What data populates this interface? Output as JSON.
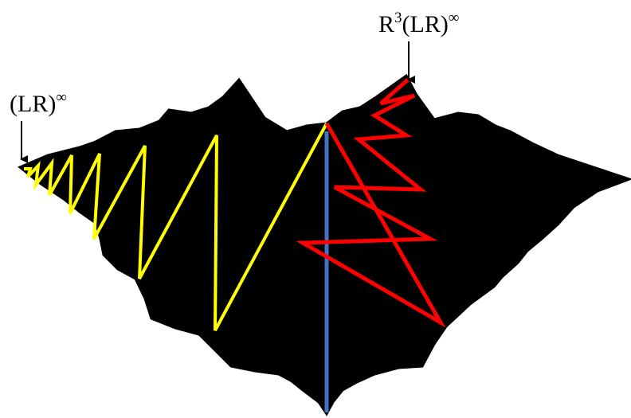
{
  "labels": [
    {
      "text": "(LR)",
      "sup": "∞"
    },
    {
      "text": "R",
      "sup": "3",
      "text2": "(LR)",
      "sup2": "∞"
    }
  ]
}
